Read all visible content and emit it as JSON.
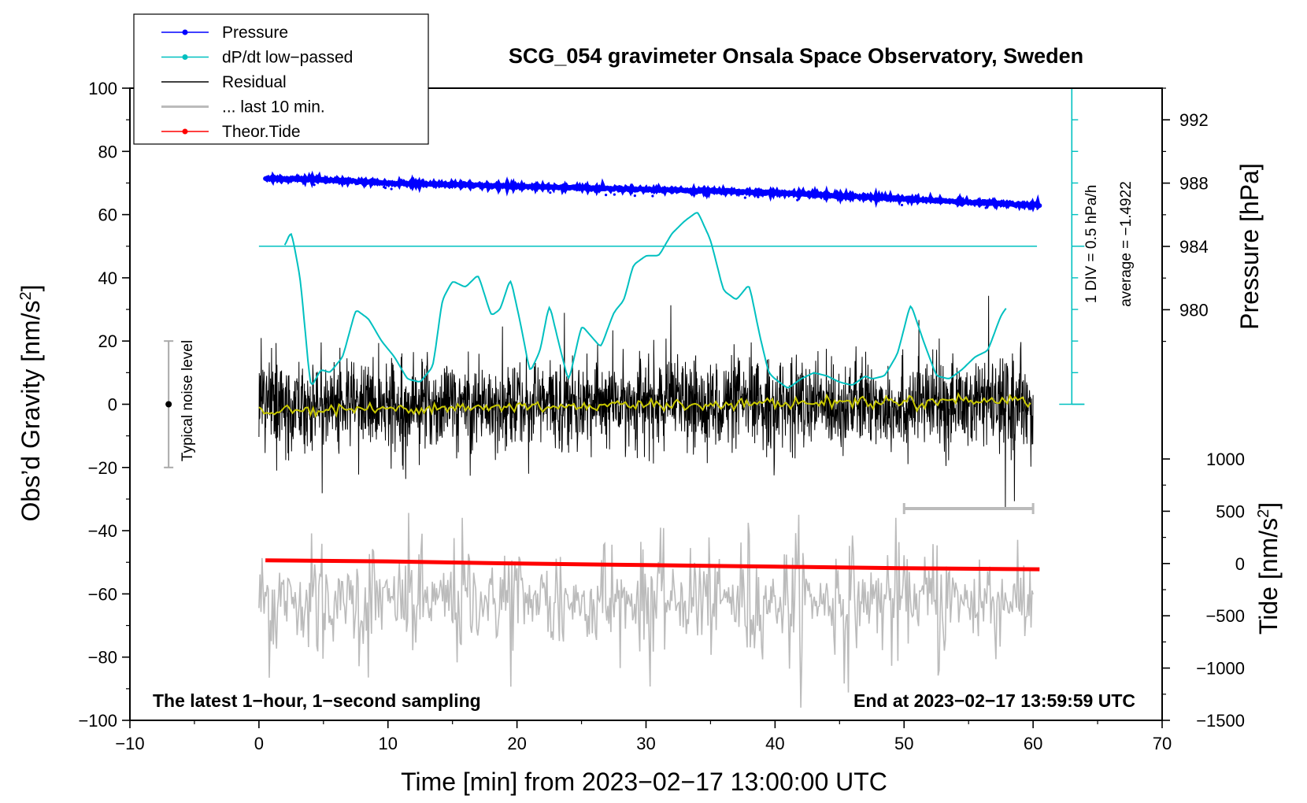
{
  "chart_data": {
    "type": "line",
    "title": "SCG_054 gravimeter Onsala Space Observatory, Sweden",
    "xlabel": "Time [min] from 2023−02−17 13:00:00 UTC",
    "ylabel_left_main": "Obs’d Gravity [nm/s",
    "ylabel_left_sup": "2",
    "ylabel_left_end": "]",
    "ylabel_right_pressure": "Pressure [hPa]",
    "ylabel_right_tide_main": "Tide [nm/s",
    "ylabel_right_tide_sup": "2",
    "ylabel_right_tide_end": "]",
    "xlim": [
      -10,
      70
    ],
    "ylim": [
      -100,
      100
    ],
    "pressure_lim": [
      978,
      994
    ],
    "tide_lim": [
      -1500,
      1000
    ],
    "x_ticks": [
      "−10",
      "0",
      "10",
      "20",
      "30",
      "40",
      "50",
      "60",
      "70"
    ],
    "y_ticks": [
      "−100",
      "−80",
      "−60",
      "−40",
      "−20",
      "0",
      "20",
      "40",
      "60",
      "80",
      "100"
    ],
    "pressure_ticks": [
      "980",
      "984",
      "988",
      "992"
    ],
    "tide_ticks": [
      "−1500",
      "−1000",
      "−500",
      "0",
      "500",
      "1000"
    ],
    "annotation_left": "The latest 1−hour, 1−second sampling",
    "annotation_right": "End at 2023−02−17 13:59:59 UTC",
    "noise_label": "Typical noise level",
    "noise_range": [
      -20,
      20
    ],
    "noise_x": -7,
    "dpdt_scale_label": "1 DIV = 0.5 hPa/h",
    "dpdt_average_label": "average = −1.4922",
    "dpdt_average_level": 50,
    "dpdt_scale_x": 63,
    "dpdt_scale_range": [
      0,
      100
    ],
    "ten_min_bar": [
      50,
      60
    ],
    "ten_min_bar_y": -33,
    "legend": [
      {
        "label": "Pressure",
        "color": "#0000ff",
        "marker": true
      },
      {
        "label": "dP/dt low−passed",
        "color": "#00c0c0",
        "marker": true
      },
      {
        "label": "Residual",
        "color": "#000000",
        "marker": false
      },
      {
        "label": "... last 10 min.",
        "color": "#bbbbbb",
        "marker": false
      },
      {
        "label": "Theor.Tide",
        "color": "#ff0000",
        "marker": true
      }
    ],
    "series": [
      {
        "name": "Pressure",
        "axis": "pressure",
        "color": "#0000ff",
        "x": [
          0.5,
          5,
          10,
          15,
          20,
          25,
          30,
          35,
          40,
          45,
          50,
          55,
          60.5
        ],
        "values": [
          988.3,
          988.2,
          988.0,
          987.9,
          987.8,
          987.7,
          987.6,
          987.5,
          987.4,
          987.2,
          987.0,
          986.8,
          986.6
        ]
      },
      {
        "name": "dP/dt low−passed",
        "axis": "gravity",
        "color": "#00c0c0",
        "x": [
          2.0,
          2.5,
          3.2,
          4.0,
          4.8,
          5.5,
          6.5,
          7.5,
          8.5,
          9.5,
          10.5,
          11.5,
          12.5,
          13.5,
          14.2,
          15.0,
          16.0,
          17.0,
          18.0,
          18.7,
          19.5,
          20.3,
          21.0,
          21.8,
          22.5,
          23.2,
          24.0,
          25.0,
          26.5,
          27.5,
          28.3,
          29.0,
          30.0,
          31.0,
          32.0,
          33.0,
          34.0,
          35.0,
          36.0,
          37.0,
          38.0,
          38.8,
          39.5,
          40.0,
          41.0,
          42.0,
          43.0,
          44.0,
          45.0,
          46.0,
          47.0,
          47.5,
          48.5,
          49.5,
          50.5,
          51.5,
          52.5,
          53.5,
          54.5,
          55.5,
          56.5,
          57.5,
          58.0
        ],
        "values": [
          50,
          55,
          40,
          5,
          11,
          10,
          15,
          30,
          27,
          20,
          15,
          8,
          7,
          12,
          33,
          39,
          37,
          41,
          28,
          30,
          40,
          25,
          10,
          17,
          32,
          20,
          7,
          25,
          18,
          29,
          33,
          44,
          47,
          47,
          54,
          58,
          61,
          52,
          36,
          33,
          38,
          22,
          10,
          8,
          5,
          8,
          10,
          9,
          7,
          6,
          9,
          8,
          9,
          16,
          32,
          20,
          9,
          8,
          11,
          15,
          17,
          28,
          31
        ]
      },
      {
        "name": "Residual",
        "axis": "gravity",
        "color": "#000000",
        "amplitude_rms": 7,
        "x_range": [
          0,
          60
        ]
      },
      {
        "name": "... last 10 min.",
        "axis": "gravity",
        "color": "#bbbbbb",
        "center": -62,
        "amplitude_rms": 8,
        "x_range": [
          0,
          60
        ]
      },
      {
        "name": "Theor.Tide",
        "axis": "tide",
        "color": "#ff0000",
        "x": [
          0.5,
          10,
          20,
          30,
          40,
          50,
          60.5
        ],
        "values": [
          30,
          20,
          0,
          -15,
          -30,
          -45,
          -55
        ]
      },
      {
        "name": "Residual mean",
        "axis": "gravity",
        "color": "#c8c800",
        "x_range": [
          0,
          60
        ],
        "level": 0.5
      }
    ]
  }
}
